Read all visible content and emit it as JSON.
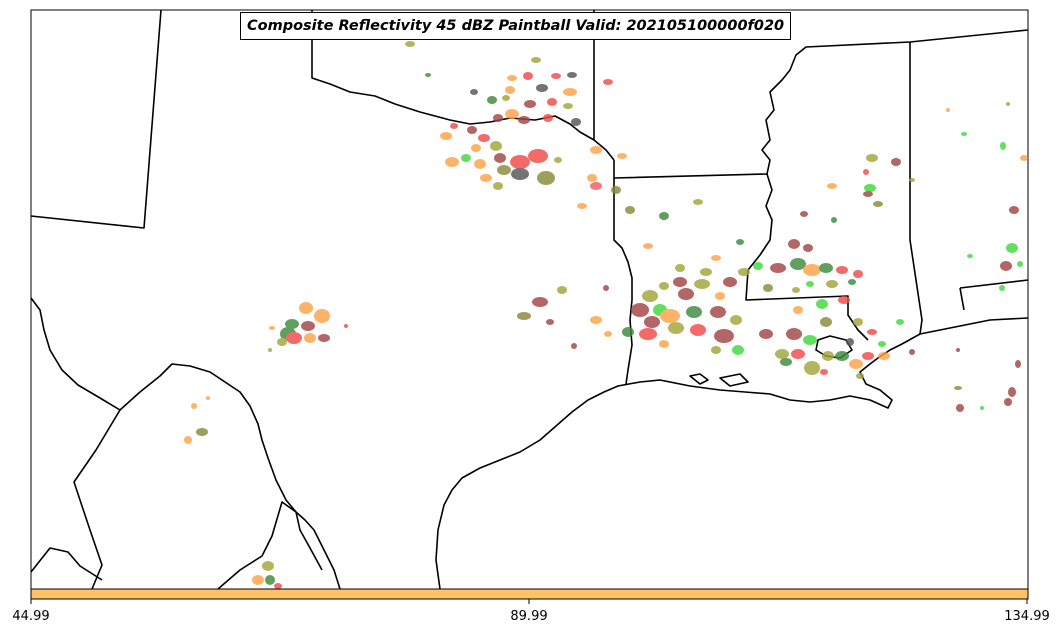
{
  "title": "Composite Reflectivity 45 dBZ Paintball Valid: 202105100000f020",
  "colorbar": {
    "color": "#FFC266",
    "ticks": [
      "44.99",
      "89.99",
      "134.99"
    ]
  },
  "paintball_colors": {
    "red": "#F24A4A",
    "green": "#3FD93F",
    "olive": "#A3A63A",
    "orange": "#FFA347",
    "dark_olive": "#8A8A3A",
    "brown": "#A34545",
    "gray": "#555555",
    "dark_green": "#3F8A3F",
    "salmon": "#F06060"
  }
}
